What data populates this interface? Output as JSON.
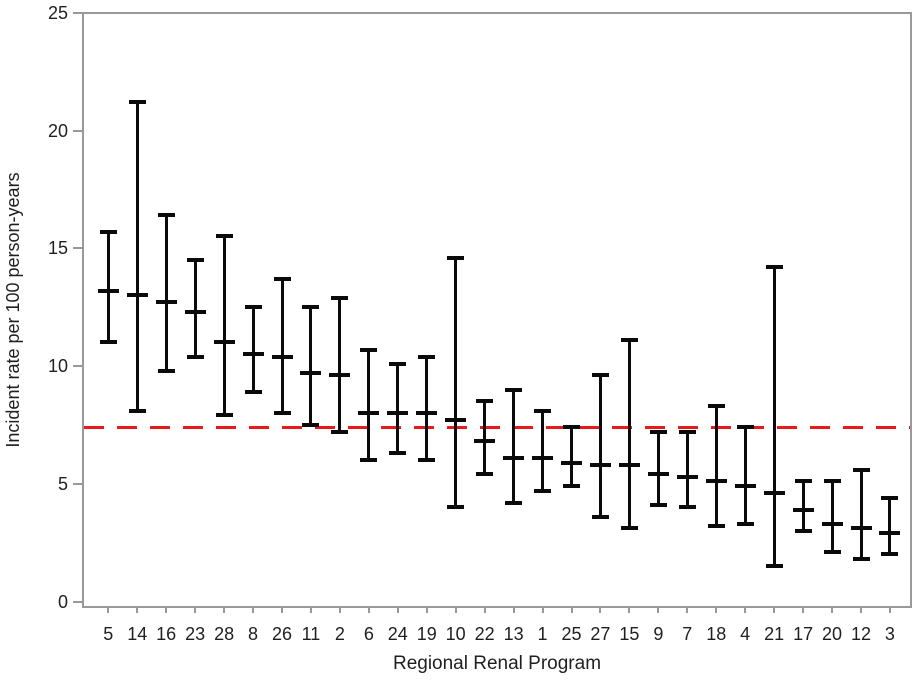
{
  "figure": {
    "x_axis_title": "Regional Renal Program",
    "y_axis_title": "Incident rate per 100 person-years"
  },
  "colors": {
    "bar": "#0a0a0a",
    "reference_line": "#e8191c",
    "axis_frame": "#999999",
    "text": "#1f1f1f"
  },
  "chart_data": {
    "type": "scatter",
    "subtype": "interval-plot-with-error-bars",
    "title": "",
    "xlabel": "Regional Renal Program",
    "ylabel": "Incident rate per 100 person-years",
    "categories": [
      "5",
      "14",
      "16",
      "23",
      "28",
      "8",
      "26",
      "11",
      "2",
      "6",
      "24",
      "19",
      "10",
      "22",
      "13",
      "1",
      "25",
      "27",
      "15",
      "9",
      "7",
      "18",
      "4",
      "21",
      "17",
      "20",
      "12",
      "3"
    ],
    "series": [
      {
        "name": "Incident rate (point estimate)",
        "values": [
          13.2,
          13.0,
          12.7,
          12.3,
          11.0,
          10.5,
          10.4,
          9.7,
          9.6,
          8.0,
          8.0,
          8.0,
          7.7,
          6.8,
          6.1,
          6.1,
          5.9,
          5.8,
          5.8,
          5.4,
          5.3,
          5.1,
          4.9,
          4.6,
          3.9,
          3.3,
          3.1,
          2.9
        ]
      },
      {
        "name": "Lower CI bound",
        "values": [
          11.0,
          8.1,
          9.8,
          10.4,
          7.9,
          8.9,
          8.0,
          7.5,
          7.2,
          6.0,
          6.3,
          6.0,
          4.0,
          5.4,
          4.2,
          4.7,
          4.9,
          3.6,
          3.1,
          4.1,
          4.0,
          3.2,
          3.3,
          1.5,
          3.0,
          2.1,
          1.8,
          2.0
        ]
      },
      {
        "name": "Upper CI bound",
        "values": [
          15.7,
          21.2,
          16.4,
          14.5,
          15.5,
          12.5,
          13.7,
          12.5,
          12.9,
          10.7,
          10.1,
          10.4,
          14.6,
          8.5,
          9.0,
          8.1,
          7.4,
          9.6,
          11.1,
          7.2,
          7.2,
          8.3,
          7.4,
          14.2,
          5.1,
          5.1,
          5.6,
          4.4
        ]
      }
    ],
    "yticks": [
      0,
      5,
      10,
      15,
      20,
      25
    ],
    "ylim": [
      0,
      25
    ],
    "reference_line": {
      "value": 7.4,
      "style": "dashed",
      "color": "#e8191c"
    },
    "grid": false,
    "legend_position": "none"
  }
}
